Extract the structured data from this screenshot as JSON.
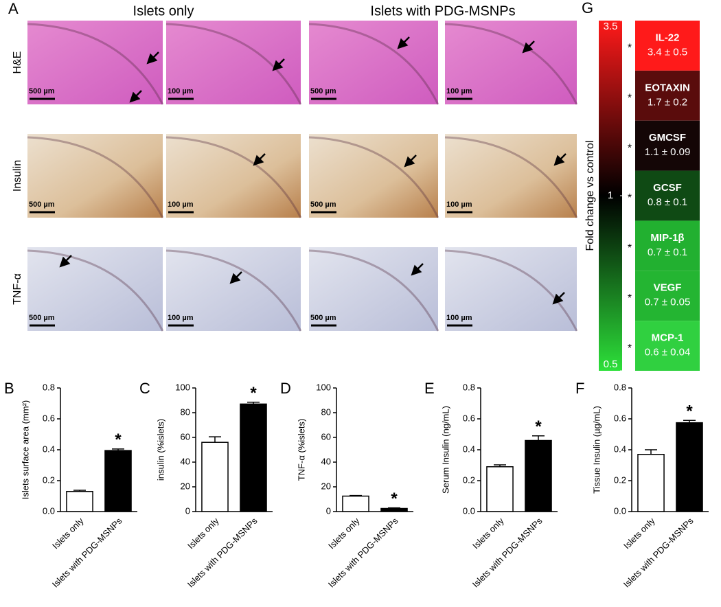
{
  "figure": {
    "panel_label": "A",
    "columns": [
      "Islets only",
      "Islets with PDG-MSNPs"
    ],
    "rows": [
      {
        "label": "H&E",
        "scale_bars": [
          "500 µm",
          "100 µm",
          "500 µm",
          "100 µm"
        ]
      },
      {
        "label": "Insulin",
        "scale_bars": [
          "500 µm",
          "100 µm",
          "500 µm",
          "100 µm"
        ]
      },
      {
        "label": "TNF-α",
        "scale_bars": [
          "500 µm",
          "100 µm",
          "500 µm",
          "100 µm"
        ]
      }
    ]
  },
  "chart_data": [
    {
      "type": "bar",
      "panel_label": "B",
      "y_label": "Islets surface area (mm²)",
      "categories": [
        "Islets only",
        "Islets with PDG-MSNPs"
      ],
      "values": [
        0.13,
        0.395
      ],
      "errors": [
        0.008,
        0.01
      ],
      "colors": [
        "#ffffff",
        "#000000"
      ],
      "annotations": [
        null,
        "*"
      ],
      "ylim": [
        0,
        0.8
      ],
      "yticks": [
        {
          "value": 0,
          "label": "0.0"
        },
        0.2,
        0.4,
        0.6,
        0.8
      ]
    },
    {
      "type": "bar",
      "panel_label": "C",
      "y_label": "insulin (%islets)",
      "categories": [
        "Islets only",
        "Islets with PDG-MSNPs"
      ],
      "values": [
        56,
        87
      ],
      "errors": [
        4.5,
        1.5
      ],
      "colors": [
        "#ffffff",
        "#000000"
      ],
      "annotations": [
        null,
        "*"
      ],
      "ylim": [
        0,
        100
      ],
      "yticks": [
        0,
        20,
        40,
        60,
        80,
        100
      ]
    },
    {
      "type": "bar",
      "panel_label": "D",
      "y_label": "TNF-α (%islets)",
      "categories": [
        "Islets only",
        "Islets with PDG-MSNPs"
      ],
      "values": [
        12.5,
        2.5
      ],
      "errors": [
        0.5,
        0.5
      ],
      "colors": [
        "#ffffff",
        "#000000"
      ],
      "annotations": [
        null,
        "*"
      ],
      "ylim": [
        0,
        100
      ],
      "yticks": [
        0,
        20,
        40,
        60,
        80,
        100
      ]
    },
    {
      "type": "bar",
      "panel_label": "E",
      "y_label": "Serum Insulin (ng/mL)",
      "categories": [
        "Islets only",
        "Islets with PDG-MSNPs"
      ],
      "values": [
        0.29,
        0.46
      ],
      "errors": [
        0.012,
        0.03
      ],
      "colors": [
        "#ffffff",
        "#000000"
      ],
      "annotations": [
        null,
        "*"
      ],
      "ylim": [
        0,
        0.8
      ],
      "yticks": [
        {
          "value": 0,
          "label": "0.0"
        },
        0.2,
        0.4,
        0.6,
        0.8
      ]
    },
    {
      "type": "bar",
      "panel_label": "F",
      "y_label": "Tissue Insulin (µg/mL)",
      "categories": [
        "Islets only",
        "Islets with PDG-MSNPs"
      ],
      "values": [
        0.37,
        0.575
      ],
      "errors": [
        0.03,
        0.015
      ],
      "colors": [
        "#ffffff",
        "#000000"
      ],
      "annotations": [
        null,
        "*"
      ],
      "ylim": [
        0,
        0.8
      ],
      "yticks": [
        {
          "value": 0,
          "label": "0.0"
        },
        0.2,
        0.4,
        0.6,
        0.8
      ]
    },
    {
      "type": "heatmap",
      "panel_label": "G",
      "colorbar_label": "Fold change vs control",
      "clim": [
        0.5,
        3.5
      ],
      "colorbar_center": 1,
      "cticks": [
        0.5,
        1,
        3.5
      ],
      "categories": [
        "IL-22",
        "EOTAXIN",
        "GMCSF",
        "GCSF",
        "MIP-1β",
        "VEGF",
        "MCP-1"
      ],
      "values": [
        3.4,
        1.7,
        1.1,
        0.8,
        0.7,
        0.7,
        0.6
      ],
      "errors": [
        0.5,
        0.2,
        0.09,
        0.1,
        0.1,
        0.05,
        0.04
      ],
      "value_labels": [
        "3.4 ± 0.5",
        "1.7 ± 0.2",
        "1.1 ± 0.09",
        "0.8 ± 0.1",
        "0.7 ± 0.1",
        "0.7 ± 0.05",
        "0.6 ± 0.04"
      ],
      "colors": [
        "#ff1a1a",
        "#5a0c0c",
        "#140606",
        "#0f4a14",
        "#22b030",
        "#24b532",
        "#30d040"
      ],
      "annotations": [
        "*",
        "*",
        "*",
        "*",
        "*",
        "*",
        "*"
      ]
    }
  ]
}
